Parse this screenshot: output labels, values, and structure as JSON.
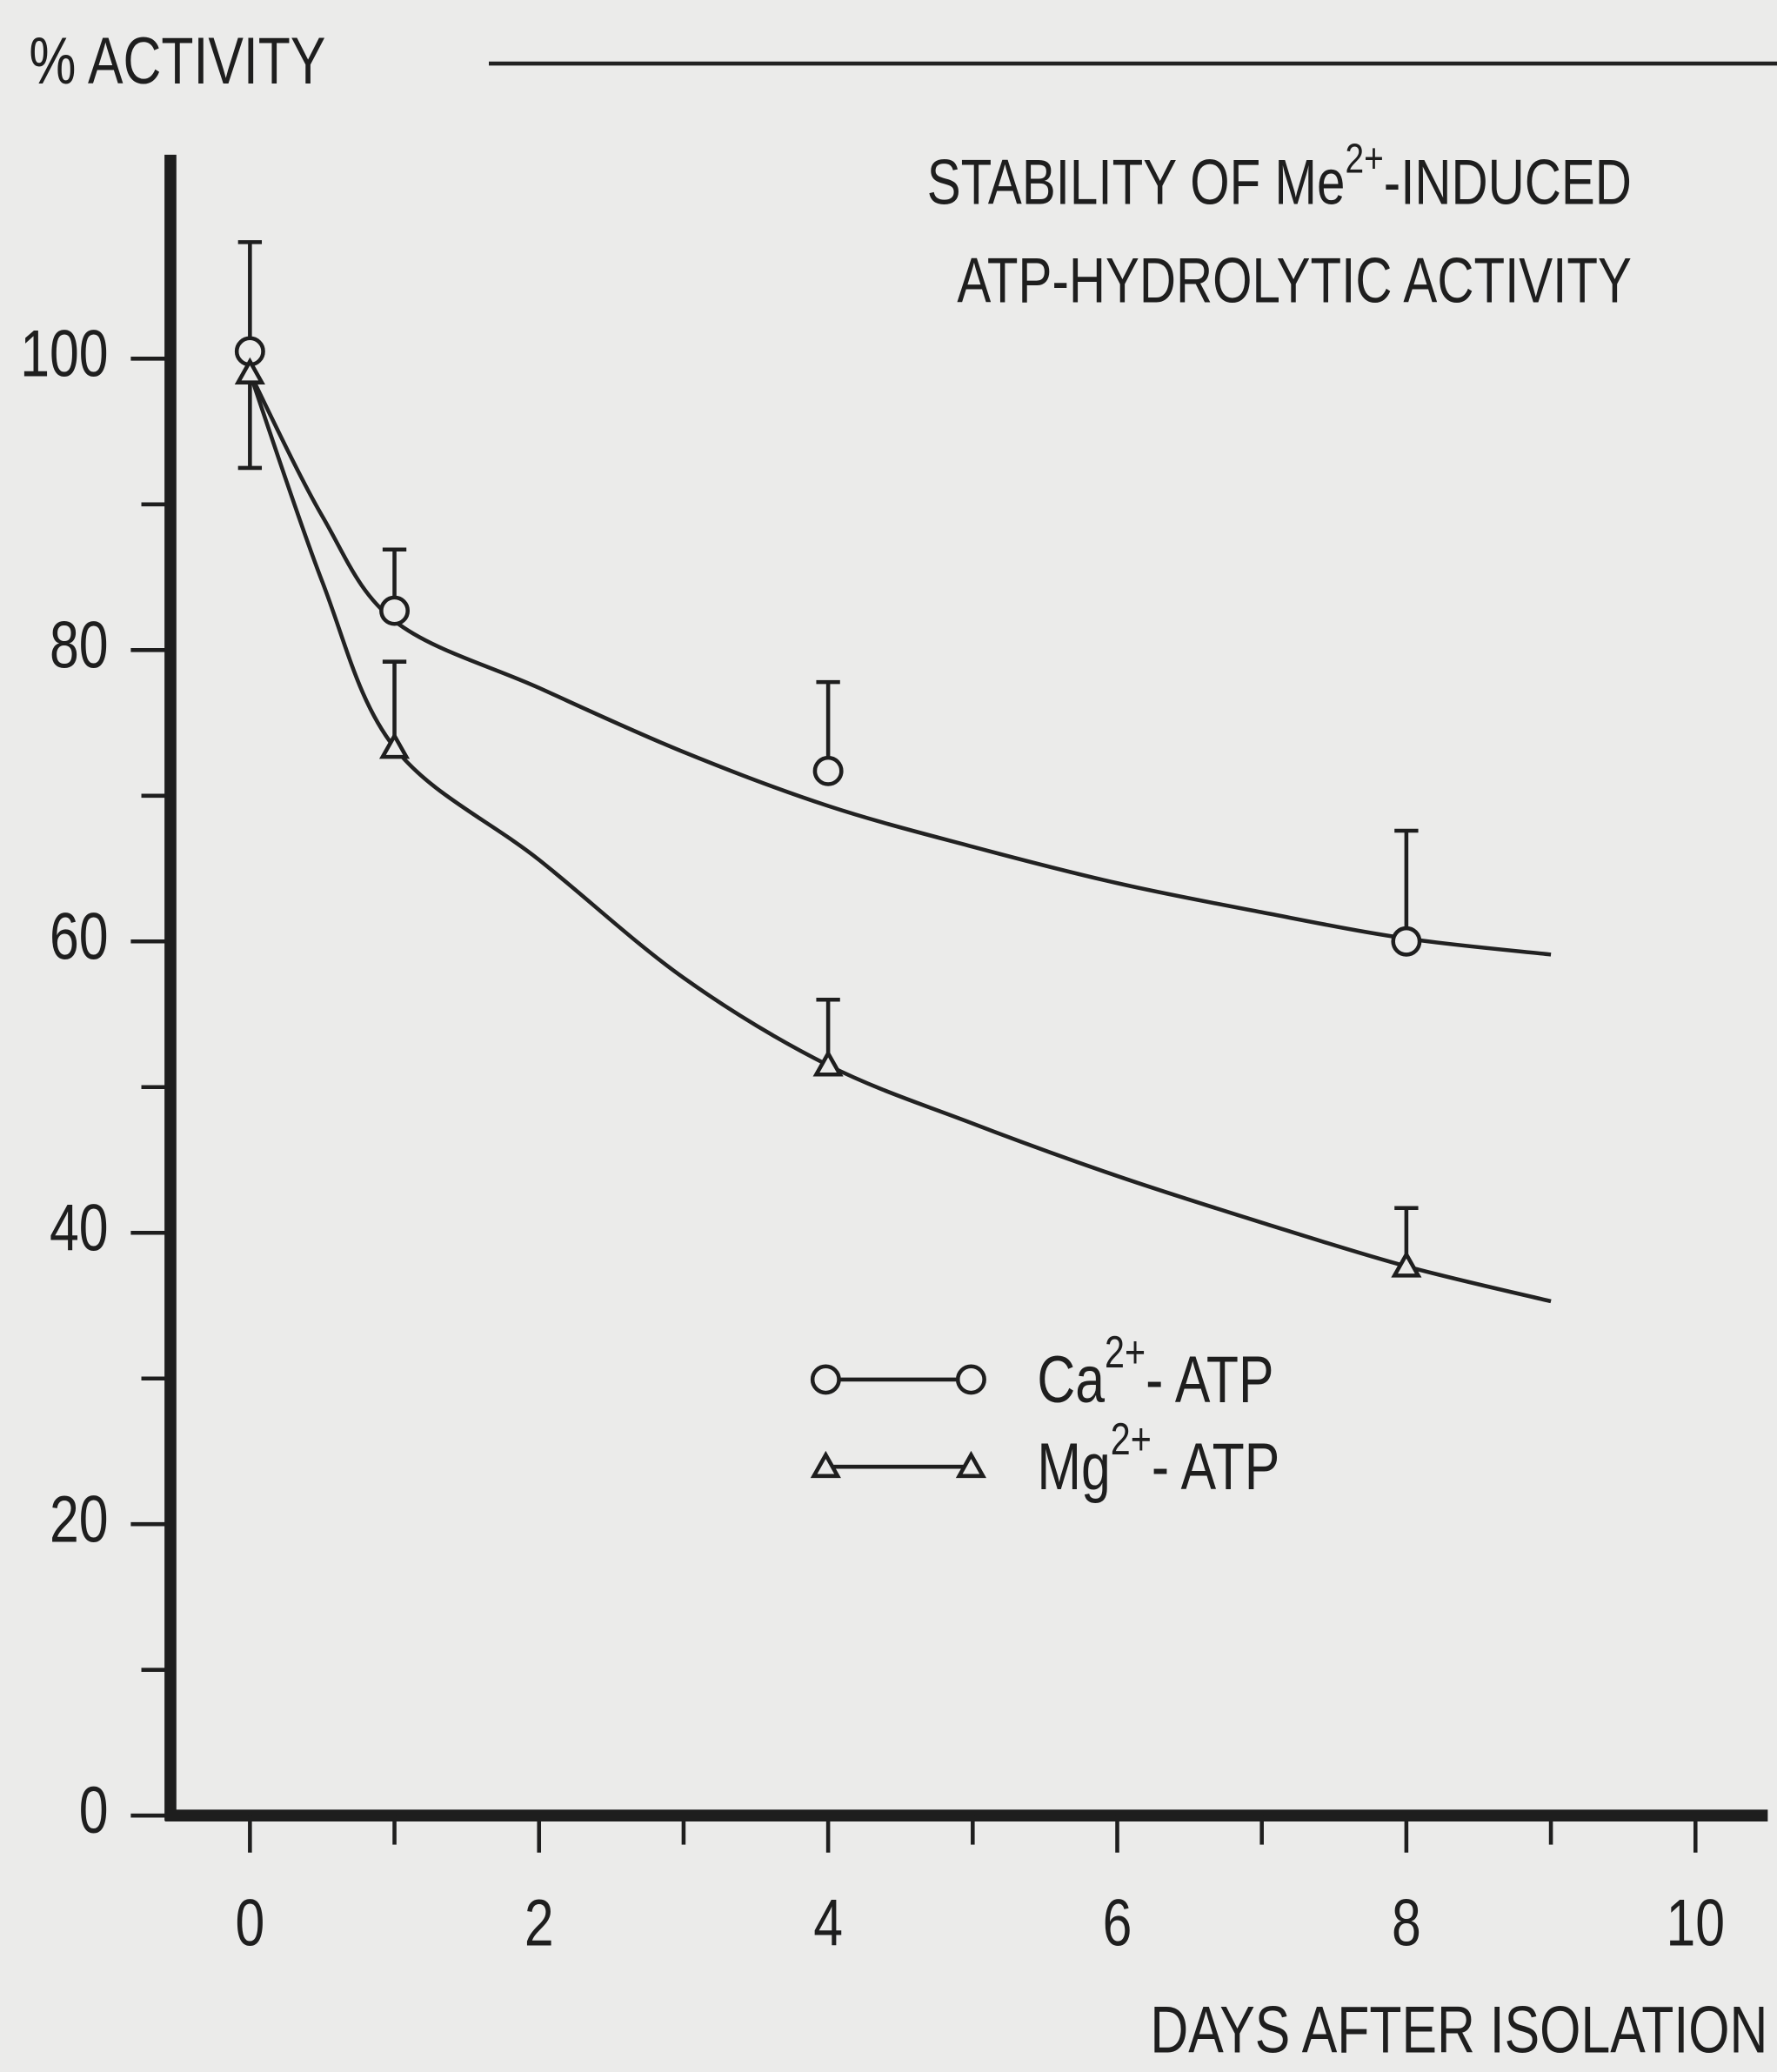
{
  "chart_data": {
    "type": "scatter",
    "title": {
      "line1": [
        "STABILITY OF Me",
        "2+",
        "-INDUCED"
      ],
      "line2": "ATP-HYDROLYTIC ACTIVITY"
    },
    "y_label": "% ACTIVITY",
    "x_label": "DAYS AFTER ISOLATION",
    "xlim": [
      -0.55,
      10.5
    ],
    "ylim": [
      0,
      114
    ],
    "xticks": [
      0,
      2,
      4,
      6,
      8,
      10
    ],
    "xminor": [
      1,
      3,
      5,
      7,
      9
    ],
    "yticks": [
      0,
      20,
      40,
      60,
      80,
      100
    ],
    "yminor": [
      10,
      30,
      50,
      70,
      90
    ],
    "grid": false,
    "series": [
      {
        "name": [
          "Ca",
          "2+",
          "- ATP"
        ],
        "marker": "circle",
        "color": "#222222",
        "x": [
          0,
          1,
          4,
          8
        ],
        "values": [
          100.5,
          82.7,
          71.7,
          60.0
        ],
        "errors": [
          7.5,
          4.2,
          6.1,
          7.6
        ],
        "errors_lower": [
          8,
          null,
          null,
          null
        ],
        "fit": {
          "x": [
            0,
            0.5,
            1,
            2,
            3,
            4,
            5,
            6,
            7,
            8,
            9
          ],
          "values": [
            99,
            89.2,
            82,
            77.4,
            73,
            69.3,
            66.5,
            64,
            62,
            60.2,
            59.1
          ]
        }
      },
      {
        "name": [
          "Mg",
          "2+",
          "- ATP"
        ],
        "marker": "triangle",
        "color": "#222222",
        "x": [
          0,
          1,
          4,
          8
        ],
        "values": [
          99,
          73.3,
          51.5,
          37.7
        ],
        "errors": [
          null,
          5.9,
          4.5,
          4.0
        ],
        "errors_lower": [
          null,
          null,
          null,
          null
        ],
        "fit": {
          "x": [
            0,
            0.5,
            1,
            2,
            3,
            4,
            5,
            6,
            7,
            8,
            9
          ],
          "values": [
            99,
            84.7,
            73.3,
            65.6,
            57.5,
            51.5,
            47.5,
            43.9,
            40.7,
            37.7,
            35.3
          ]
        }
      }
    ]
  }
}
